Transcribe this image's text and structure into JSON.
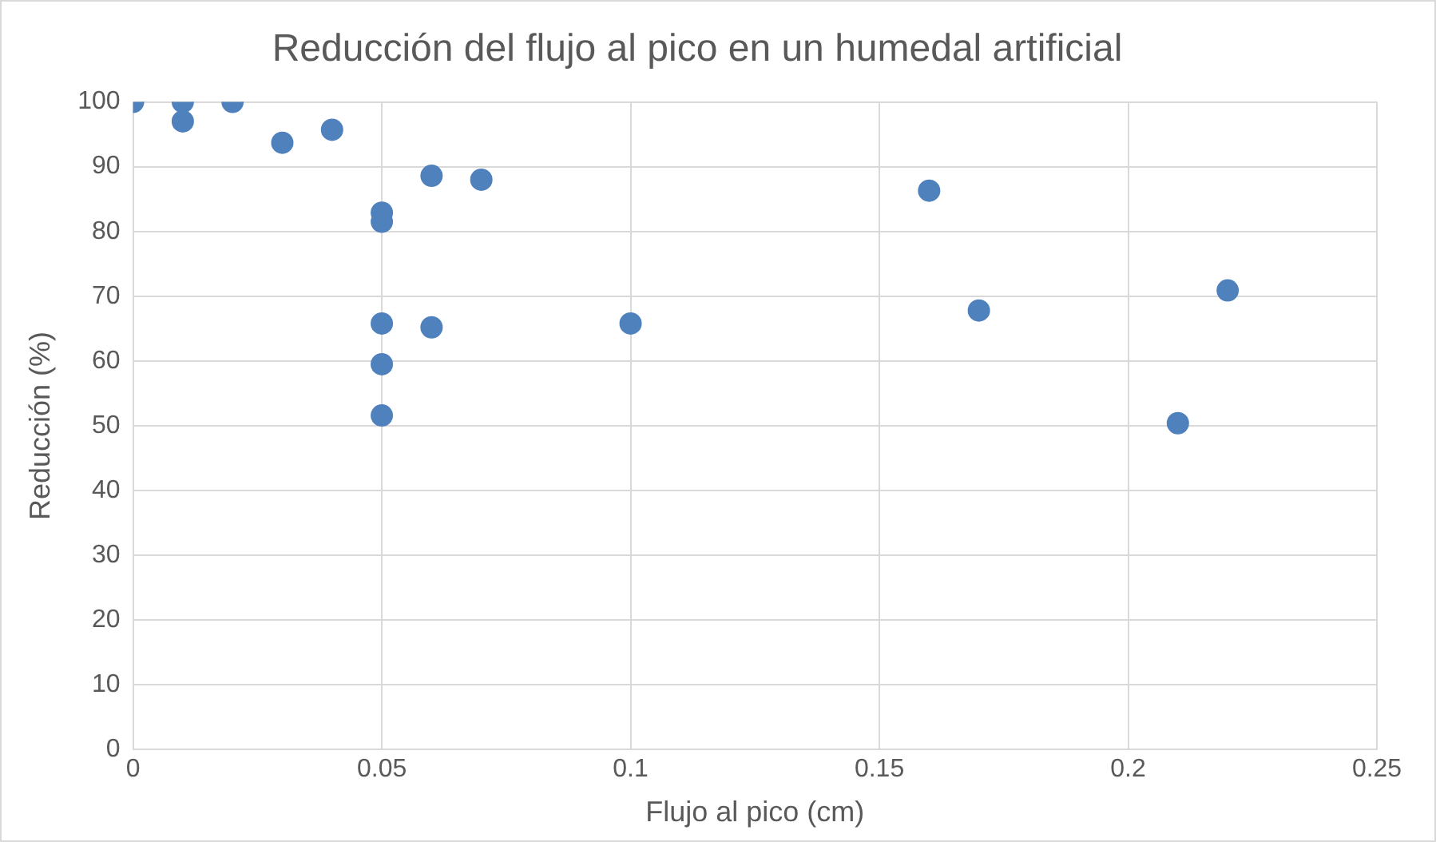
{
  "chart_data": {
    "type": "scatter",
    "title": "Reducción del flujo al pico en un humedal artificial",
    "xlabel": "Flujo al pico (cm)",
    "ylabel": "Reducción (%)",
    "x": [
      0,
      0.01,
      0.01,
      0.02,
      0.03,
      0.04,
      0.05,
      0.05,
      0.06,
      0.07,
      0.05,
      0.06,
      0.1,
      0.05,
      0.05,
      0.16,
      0.17,
      0.21,
      0.22
    ],
    "series": [
      {
        "color": "#4f81bd",
        "values": [
          100,
          100,
          97,
          100,
          93.7,
          95.7,
          82.9,
          81.5,
          88.6,
          88.0,
          65.8,
          65.2,
          65.8,
          59.5,
          51.6,
          86.3,
          67.8,
          50.4,
          70.9
        ]
      }
    ],
    "xlim": [
      0,
      0.25
    ],
    "xticks": [
      0,
      0.05,
      0.1,
      0.15,
      0.2,
      0.25
    ],
    "ylim": [
      0,
      100
    ],
    "yticks": [
      0,
      10,
      20,
      30,
      40,
      50,
      60,
      70,
      80,
      90,
      100
    ],
    "grid": true,
    "marker": "circle"
  }
}
